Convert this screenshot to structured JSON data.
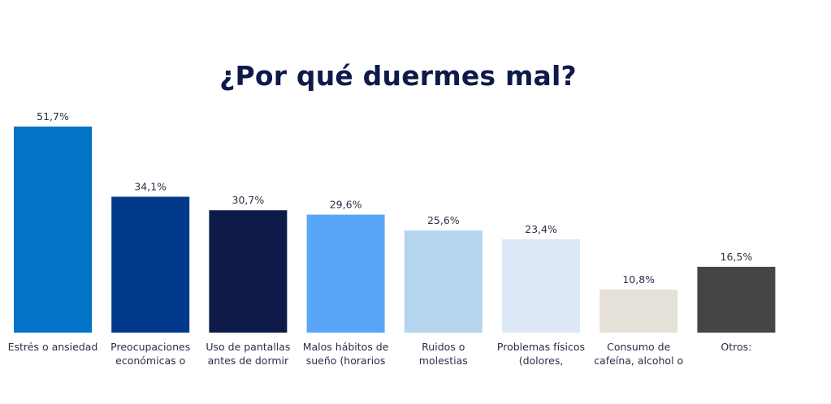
{
  "chart_data": {
    "type": "bar",
    "title": "¿Por qué duermes mal?",
    "xlabel": "",
    "ylabel": "",
    "ylim": [
      0,
      51.7
    ],
    "grid": false,
    "categories": [
      [
        "Estrés o ansiedad"
      ],
      [
        "Preocupaciones",
        "económicas o"
      ],
      [
        "Uso de pantallas",
        "antes de dormir"
      ],
      [
        "Malos hábitos de",
        "sueño (horarios"
      ],
      [
        "Ruidos o",
        "molestias"
      ],
      [
        "Problemas físicos",
        "(dolores,"
      ],
      [
        "Consumo de",
        "cafeína, alcohol o"
      ],
      [
        "Otros:"
      ]
    ],
    "values": [
      51.7,
      34.1,
      30.7,
      29.6,
      25.6,
      23.4,
      10.8,
      16.5
    ],
    "value_labels": [
      "51,7%",
      "34,1%",
      "30,7%",
      "29,6%",
      "25,6%",
      "23,4%",
      "10,8%",
      "16,5%"
    ],
    "colors": [
      "#0273c7",
      "#013a8a",
      "#0e1b48",
      "#5aa6f6",
      "#b5d5ef",
      "#dde9f6",
      "#e5e1d9",
      "#454545"
    ]
  }
}
